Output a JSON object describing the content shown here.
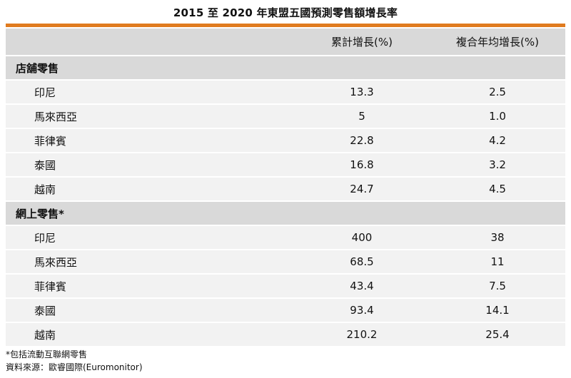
{
  "title": "2015 至 2020 年東盟五國預測零售額增長率",
  "columns": [
    "",
    "累計增長(%)",
    "複合年均增長(%)"
  ],
  "sections": [
    {
      "label": "店舖零售",
      "rows": [
        {
          "country": "印尼",
          "cumulative": "13.3",
          "cagr": "2.5"
        },
        {
          "country": "馬來西亞",
          "cumulative": "5",
          "cagr": "1.0"
        },
        {
          "country": "菲律賓",
          "cumulative": "22.8",
          "cagr": "4.2"
        },
        {
          "country": "泰國",
          "cumulative": "16.8",
          "cagr": "3.2"
        },
        {
          "country": "越南",
          "cumulative": "24.7",
          "cagr": "4.5"
        }
      ]
    },
    {
      "label": "網上零售*",
      "rows": [
        {
          "country": "印尼",
          "cumulative": "400",
          "cagr": "38"
        },
        {
          "country": "馬來西亞",
          "cumulative": "68.5",
          "cagr": "11"
        },
        {
          "country": "菲律賓",
          "cumulative": "43.4",
          "cagr": "7.5"
        },
        {
          "country": "泰國",
          "cumulative": "93.4",
          "cagr": "14.1"
        },
        {
          "country": "越南",
          "cumulative": "210.2",
          "cagr": "25.4"
        }
      ]
    }
  ],
  "notes": [
    "*包括流動互聯網零售",
    "資料來源：歐睿國際(Euromonitor)"
  ],
  "accent_color": "#e07b1f",
  "header_bg": "#d9d9d9",
  "row_bg": "#f2f2f2"
}
